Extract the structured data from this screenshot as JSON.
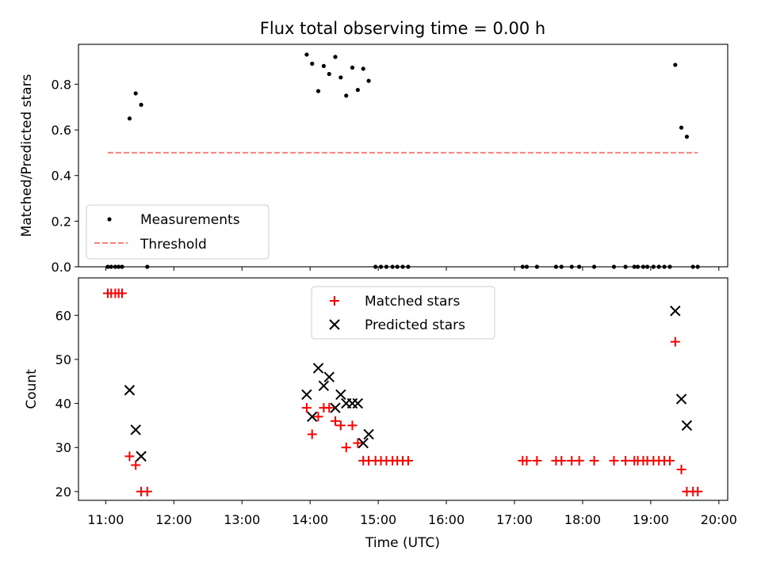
{
  "chart_data": [
    {
      "type": "scatter",
      "title": "Flux total observing time = 0.00 h",
      "xlabel": "",
      "ylabel": "Matched/Predicted stars",
      "xlim": [
        10.6,
        20.13
      ],
      "ylim": [
        0,
        0.975
      ],
      "yticks": [
        0.0,
        0.2,
        0.4,
        0.6,
        0.8
      ],
      "ytick_labels": [
        "0.0",
        "0.2",
        "0.4",
        "0.6",
        "0.8"
      ],
      "xticks": [
        11,
        12,
        13,
        14,
        15,
        16,
        17,
        18,
        19,
        20
      ],
      "legend_position": "lower-left",
      "series": [
        {
          "name": "Measurements",
          "marker": "dot",
          "color": "#000000",
          "x": [
            11.03,
            11.08,
            11.14,
            11.19,
            11.24,
            11.35,
            11.44,
            11.52,
            11.61,
            13.95,
            14.03,
            14.12,
            14.2,
            14.28,
            14.37,
            14.45,
            14.53,
            14.62,
            14.7,
            14.78,
            14.86,
            14.96,
            15.04,
            15.12,
            15.21,
            15.28,
            15.36,
            15.44,
            17.12,
            17.18,
            17.33,
            17.61,
            17.69,
            17.84,
            17.95,
            18.17,
            18.46,
            18.63,
            18.76,
            18.81,
            18.89,
            18.95,
            19.04,
            19.12,
            19.2,
            19.28,
            19.36,
            19.45,
            19.53,
            19.62,
            19.69
          ],
          "y": [
            0,
            0,
            0,
            0,
            0,
            0.65,
            0.76,
            0.71,
            0,
            0.93,
            0.89,
            0.77,
            0.88,
            0.845,
            0.92,
            0.83,
            0.75,
            0.873,
            0.775,
            0.868,
            0.815,
            0,
            0,
            0,
            0,
            0,
            0,
            0,
            0,
            0,
            0,
            0,
            0,
            0,
            0,
            0,
            0,
            0,
            0,
            0,
            0,
            0,
            0,
            0,
            0,
            0,
            0.885,
            0.61,
            0.57,
            0,
            0
          ]
        },
        {
          "name": "Threshold",
          "style": "dashed",
          "color": "#ff7f7f",
          "x": [
            11.03,
            19.69
          ],
          "y": [
            0.5,
            0.5
          ]
        }
      ]
    },
    {
      "type": "scatter",
      "title": "",
      "xlabel": "Time (UTC)",
      "ylabel": "Count",
      "xlim": [
        10.6,
        20.13
      ],
      "ylim": [
        18,
        68.5
      ],
      "yticks": [
        20,
        30,
        40,
        50,
        60
      ],
      "ytick_labels": [
        "20",
        "30",
        "40",
        "50",
        "60"
      ],
      "xticks": [
        11,
        12,
        13,
        14,
        15,
        16,
        17,
        18,
        19,
        20
      ],
      "xtick_labels": [
        "11:00",
        "12:00",
        "13:00",
        "14:00",
        "15:00",
        "16:00",
        "17:00",
        "18:00",
        "19:00",
        "20:00"
      ],
      "legend_position": "upper-center",
      "series": [
        {
          "name": "Matched stars",
          "marker": "plus",
          "color": "#ff0000",
          "x": [
            11.03,
            11.08,
            11.14,
            11.19,
            11.24,
            11.35,
            11.44,
            11.52,
            11.61,
            13.95,
            14.03,
            14.12,
            14.2,
            14.28,
            14.37,
            14.45,
            14.53,
            14.62,
            14.7,
            14.78,
            14.86,
            14.96,
            15.04,
            15.12,
            15.21,
            15.28,
            15.36,
            15.44,
            17.12,
            17.18,
            17.33,
            17.61,
            17.69,
            17.84,
            17.95,
            18.17,
            18.46,
            18.63,
            18.76,
            18.81,
            18.89,
            18.95,
            19.04,
            19.12,
            19.2,
            19.28,
            19.36,
            19.45,
            19.53,
            19.62,
            19.69
          ],
          "y": [
            65,
            65,
            65,
            65,
            65,
            28,
            26,
            20,
            20,
            39,
            33,
            37,
            39,
            39,
            36,
            35,
            30,
            35,
            31,
            27,
            27,
            27,
            27,
            27,
            27,
            27,
            27,
            27,
            27,
            27,
            27,
            27,
            27,
            27,
            27,
            27,
            27,
            27,
            27,
            27,
            27,
            27,
            27,
            27,
            27,
            27,
            54,
            25,
            20,
            20,
            20
          ]
        },
        {
          "name": "Predicted stars",
          "marker": "x",
          "color": "#000000",
          "x": [
            11.35,
            11.44,
            11.52,
            13.95,
            14.03,
            14.12,
            14.2,
            14.28,
            14.37,
            14.45,
            14.53,
            14.62,
            14.7,
            14.78,
            14.86,
            19.36,
            19.45,
            19.53
          ],
          "y": [
            43,
            34,
            28,
            42,
            37,
            48,
            44,
            46,
            39,
            42,
            40,
            40,
            40,
            31,
            33,
            61,
            41,
            35
          ]
        }
      ]
    }
  ]
}
